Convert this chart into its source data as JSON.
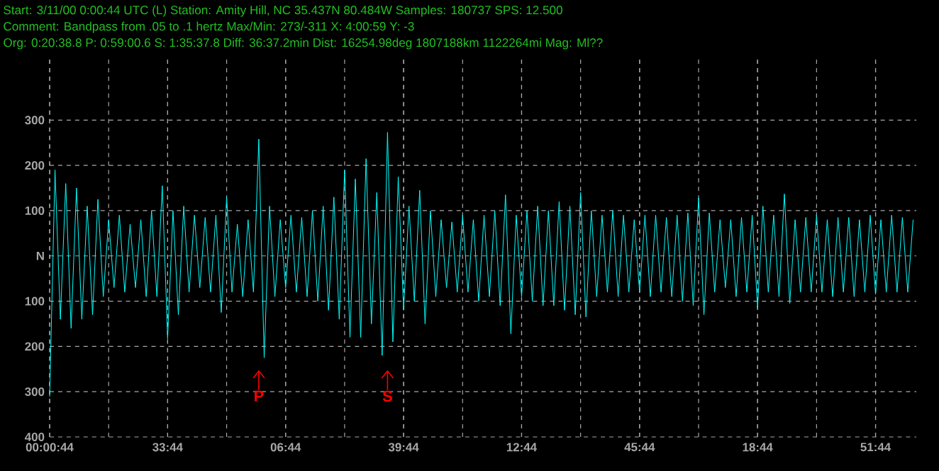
{
  "chart_data": {
    "type": "line",
    "annotations": [
      "Start: 3/11/00  0:00:44 UTC (L) Station: Amity Hill, NC 35.437N 80.484W Samples: 180737  SPS: 12.500",
      "Comment: Bandpass from .05 to .1 hertz     Max/Min: 273/-311 X: 4:00:59 Y: -3",
      "Org: 0:20:38.8 P: 0:59:00.6 S: 1:35:37.8 Diff: 36:37.2min Dist: 16254.98deg 1807188km 1122264mi  Mag: Ml??",
      "P",
      "S"
    ],
    "categories": [
      "00:00:44",
      null,
      null,
      null,
      null,
      null,
      null,
      null,
      null,
      null,
      null,
      null,
      null,
      null,
      null,
      null,
      null,
      null,
      null,
      null,
      null,
      null,
      "33:44",
      null,
      null,
      null,
      null,
      null,
      null,
      null,
      null,
      null,
      null,
      null,
      null,
      null,
      null,
      null,
      null,
      null,
      null,
      null,
      null,
      null,
      "06:44",
      null,
      null,
      null,
      null,
      null,
      null,
      null,
      null,
      null,
      null,
      null,
      null,
      null,
      null,
      null,
      null,
      null,
      null,
      null,
      null,
      null,
      "39:44",
      null,
      null,
      null,
      null,
      null,
      null,
      null,
      null,
      null,
      null,
      null,
      null,
      null,
      null,
      null,
      null,
      null,
      null,
      null,
      null,
      null,
      "12:44",
      null,
      null,
      null,
      null,
      null,
      null,
      null,
      null,
      null,
      null,
      null,
      null,
      null,
      null,
      null,
      null,
      null,
      null,
      null,
      null,
      null,
      "45:44",
      null,
      null,
      null,
      null,
      null,
      null,
      null,
      null,
      null,
      null,
      null,
      null,
      null,
      null,
      null,
      null,
      null,
      null,
      null,
      null,
      null,
      "18:44",
      null,
      null,
      null,
      null,
      null,
      null,
      null,
      null,
      null,
      null,
      null,
      null,
      null,
      null,
      null,
      null,
      null,
      null,
      null,
      null,
      null,
      "51:44",
      null,
      null,
      null,
      null,
      null,
      null,
      null
    ],
    "ylim": [
      -400,
      440
    ],
    "yticks": [
      300,
      200,
      100,
      {
        "value": 0,
        "label": "N"
      },
      {
        "value": -100,
        "label": "100"
      },
      {
        "value": -200,
        "label": "200"
      },
      {
        "value": -300,
        "label": "300"
      },
      {
        "value": -400,
        "label": "400"
      }
    ],
    "grid": true,
    "line_style": "solid",
    "series": [
      {
        "color": "#00ffff",
        "values": [
          -311,
          190,
          -140,
          160,
          -160,
          150,
          -140,
          110,
          -130,
          125,
          -90,
          80,
          -70,
          90,
          -80,
          70,
          -70,
          80,
          -90,
          100,
          -90,
          155,
          -183,
          100,
          -130,
          110,
          -80,
          90,
          -70,
          85,
          -80,
          90,
          -125,
          130,
          -80,
          70,
          -90,
          80,
          -80,
          258,
          -225,
          110,
          -90,
          80,
          -70,
          90,
          -80,
          85,
          -90,
          100,
          -100,
          110,
          -120,
          130,
          -140,
          190,
          -180,
          170,
          -180,
          215,
          -150,
          140,
          -220,
          273,
          -190,
          175,
          -120,
          110,
          -100,
          145,
          -150,
          100,
          -90,
          80,
          -70,
          75,
          -80,
          90,
          -80,
          80,
          -100,
          90,
          -90,
          100,
          -110,
          135,
          -172,
          90,
          -90,
          100,
          -100,
          110,
          -110,
          100,
          -110,
          120,
          -120,
          110,
          -130,
          140,
          -135,
          100,
          -90,
          90,
          -80,
          100,
          -90,
          90,
          -80,
          80,
          -80,
          90,
          -90,
          90,
          -80,
          85,
          -90,
          90,
          -100,
          95,
          -110,
          128,
          -130,
          95,
          -80,
          80,
          -70,
          80,
          -90,
          85,
          -80,
          90,
          -115,
          110,
          -80,
          90,
          -90,
          137,
          -105,
          80,
          -80,
          85,
          -80,
          90,
          -80,
          80,
          -90,
          85,
          -80,
          85,
          -90,
          80,
          -80,
          90,
          -85,
          80,
          -80,
          90,
          -80,
          85,
          -80,
          80
        ]
      }
    ]
  }
}
